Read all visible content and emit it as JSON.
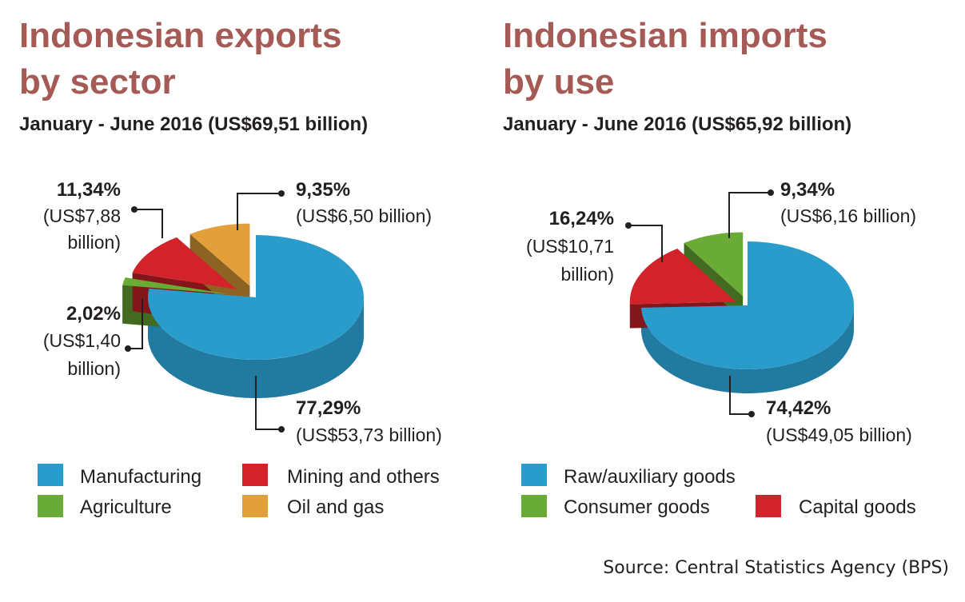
{
  "chart_data": [
    {
      "type": "pie",
      "title_line1": "Indonesian exports",
      "title_line2": "by sector",
      "subtitle": "January - June 2016 (US$69,51 billion)",
      "slices": [
        {
          "name": "Manufacturing",
          "value": 77.29,
          "pct_label": "77,29%",
          "amount_label": "(US$53,73 billion)",
          "color": "#2a9ccc"
        },
        {
          "name": "Agriculture",
          "value": 2.02,
          "pct_label": "2,02%",
          "amount_label": "(US$1,40 billion)",
          "color": "#6aab35"
        },
        {
          "name": "Mining and others",
          "value": 11.34,
          "pct_label": "11,34%",
          "amount_label": "(US$7,88 billion)",
          "color": "#d2232a"
        },
        {
          "name": "Oil and gas",
          "value": 9.35,
          "pct_label": "9,35%",
          "amount_label": "(US$6,50 billion)",
          "color": "#e3a03a"
        }
      ]
    },
    {
      "type": "pie",
      "title_line1": "Indonesian imports",
      "title_line2": "by use",
      "subtitle": "January - June 2016 (US$65,92 billion)",
      "slices": [
        {
          "name": "Raw/auxiliary goods",
          "value": 74.42,
          "pct_label": "74,42%",
          "amount_label": "(US$49,05 billion)",
          "color": "#2a9ccc"
        },
        {
          "name": "Capital goods",
          "value": 16.24,
          "pct_label": "16,24%",
          "amount_label": "(US$10,71 billion)",
          "color": "#d2232a"
        },
        {
          "name": "Consumer goods",
          "value": 9.34,
          "pct_label": "9,34%",
          "amount_label": "(US$6,16 billion)",
          "color": "#6aab35"
        }
      ]
    }
  ],
  "exports_labels": {
    "mining_pct": "11,34%",
    "mining_l1": "(US$7,88",
    "mining_l2": "billion)",
    "oil_pct": "9,35%",
    "oil_l1": "(US$6,50 billion)",
    "agri_pct": "2,02%",
    "agri_l1": "(US$1,40",
    "agri_l2": "billion)",
    "manu_pct": "77,29%",
    "manu_l1": "(US$53,73 billion)"
  },
  "imports_labels": {
    "capital_pct": "16,24%",
    "capital_l1": "(US$10,71",
    "capital_l2": "billion)",
    "consumer_pct": "9,34%",
    "consumer_l1": "(US$6,16 billion)",
    "raw_pct": "74,42%",
    "raw_l1": "(US$49,05 billion)"
  },
  "legend_exports": [
    "Manufacturing",
    "Mining and others",
    "Agriculture",
    "Oil and gas"
  ],
  "legend_imports": [
    "Raw/auxiliary goods",
    "Consumer goods",
    "Capital goods"
  ],
  "colors": {
    "blue": "#2a9ccc",
    "red": "#d2232a",
    "green": "#6aab35",
    "orange": "#e3a03a",
    "title": "#a65a55"
  },
  "source": "Source: Central Statistics Agency (BPS)"
}
